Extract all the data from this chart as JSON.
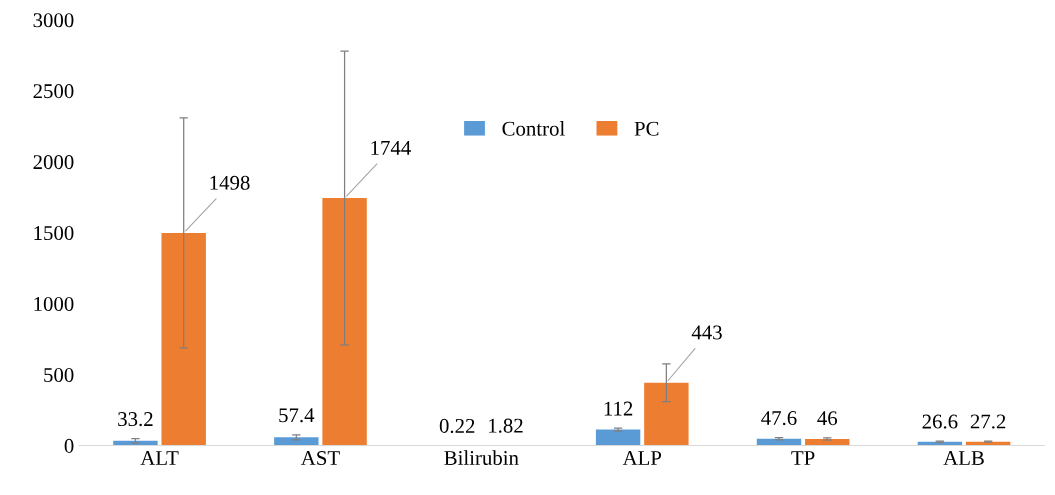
{
  "chart_data": {
    "type": "bar",
    "categories": [
      "ALT",
      "AST",
      "Bilirubin",
      "ALP",
      "TP",
      "ALB"
    ],
    "series": [
      {
        "name": "Control",
        "color": "#5b9bd5",
        "values": [
          33.2,
          57.4,
          0.22,
          112,
          47.6,
          26.6
        ],
        "errors": [
          15,
          18,
          null,
          10,
          8,
          4
        ]
      },
      {
        "name": "PC",
        "color": "#ed7d31",
        "values": [
          1498,
          1744,
          1.82,
          443,
          46,
          27.2
        ],
        "errors": [
          810,
          1035,
          null,
          133,
          8,
          4
        ]
      }
    ],
    "ylim": [
      0,
      3000
    ],
    "yticks": [
      0,
      500,
      1000,
      1500,
      2000,
      2500,
      3000
    ],
    "data_labels": true,
    "legend": "top",
    "grid": false
  }
}
